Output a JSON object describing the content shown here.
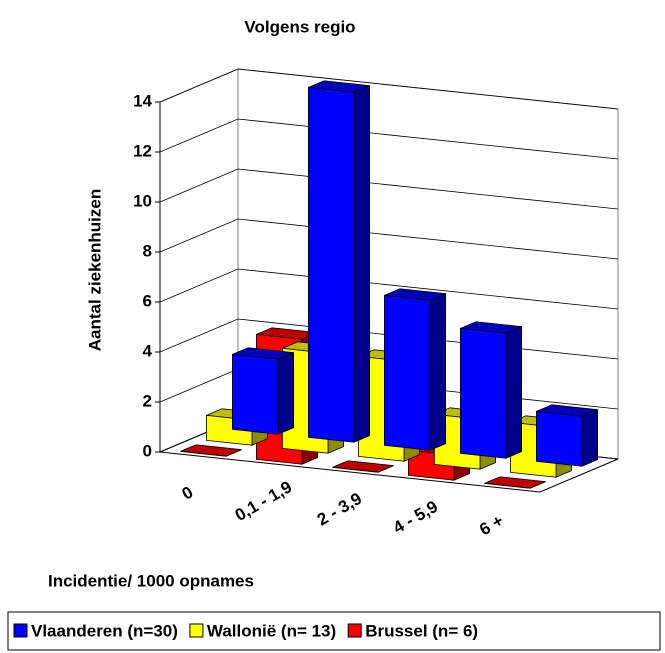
{
  "chart_data": {
    "type": "bar3d",
    "title": "Volgens regio",
    "x_label": "Incidentie/ 1000 opnames",
    "y_label": "Aantal ziekenhuizen",
    "categories": [
      "0",
      "0,1 - 1,9",
      "2 - 3,9",
      "4 - 5,9",
      "6 +"
    ],
    "series": [
      {
        "name": "Vlaanderen (n=30)",
        "color": "#0000ff",
        "values": [
          3,
          14,
          6,
          5,
          2
        ]
      },
      {
        "name": "Wallonië (n= 13)",
        "color": "#ffff00",
        "values": [
          1,
          4,
          4,
          2,
          2
        ]
      },
      {
        "name": "Brussel (n= 6)",
        "color": "#ff0000",
        "values": [
          0,
          5,
          0,
          1,
          0
        ]
      }
    ],
    "ylim": [
      0,
      14
    ],
    "yticks": [
      0,
      2,
      4,
      6,
      8,
      10,
      12,
      14
    ],
    "grid": true,
    "legend": "bottom"
  }
}
